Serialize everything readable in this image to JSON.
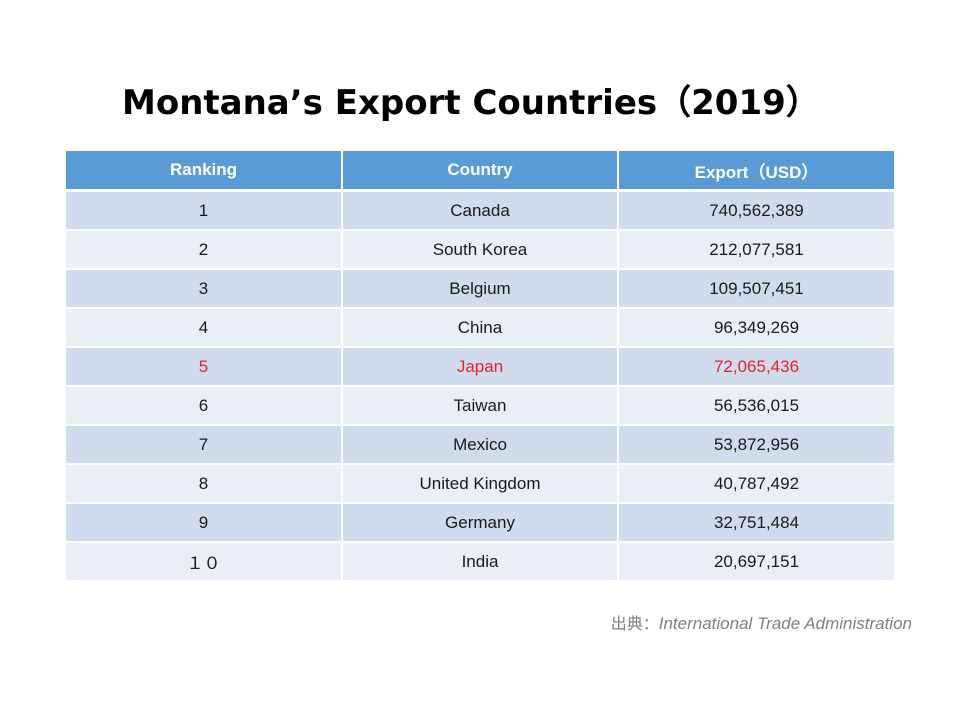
{
  "slide": {
    "title": "Montana’s Export Countries（2019）"
  },
  "table": {
    "headers": [
      "Ranking",
      "Country",
      "Export（USD）"
    ],
    "rows": [
      {
        "rank": "1",
        "country": "Canada",
        "export": "740,562,389",
        "highlight": false
      },
      {
        "rank": "2",
        "country": "South Korea",
        "export": "212,077,581",
        "highlight": false
      },
      {
        "rank": "3",
        "country": "Belgium",
        "export": "109,507,451",
        "highlight": false
      },
      {
        "rank": "4",
        "country": "China",
        "export": "96,349,269",
        "highlight": false
      },
      {
        "rank": "5",
        "country": "Japan",
        "export": "72,065,436",
        "highlight": true
      },
      {
        "rank": "6",
        "country": "Taiwan",
        "export": "56,536,015",
        "highlight": false
      },
      {
        "rank": "7",
        "country": "Mexico",
        "export": "53,872,956",
        "highlight": false
      },
      {
        "rank": "8",
        "country": "United Kingdom",
        "export": "40,787,492",
        "highlight": false
      },
      {
        "rank": "9",
        "country": "Germany",
        "export": "32,751,484",
        "highlight": false
      },
      {
        "rank": "１０",
        "country": "India",
        "export": "20,697,151",
        "highlight": false
      }
    ]
  },
  "source": {
    "label": "出典：",
    "name": "International Trade Administration"
  },
  "colors": {
    "header_bg": "#5b9bd5",
    "row_odd_bg": "#d0dbee",
    "row_even_bg": "#e9eef7",
    "highlight_text": "#e8202a",
    "source_text": "#7f7f7f"
  }
}
